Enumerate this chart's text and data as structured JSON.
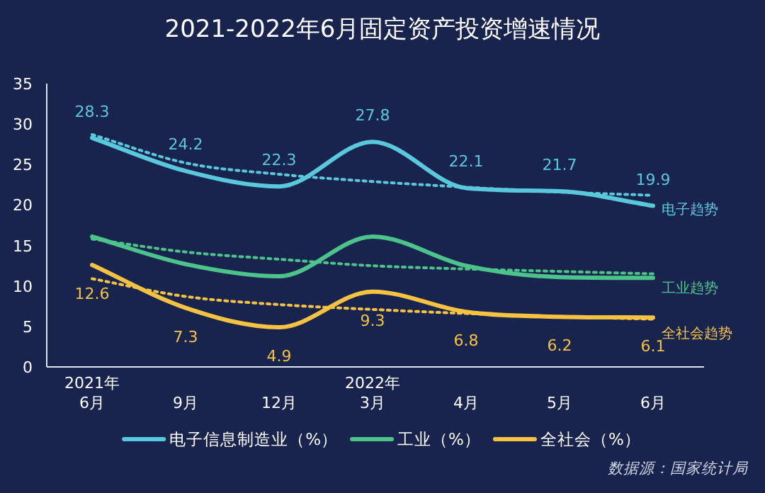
{
  "chart_data": {
    "type": "line",
    "title": "2021-2022年6月固定资产投资增速情况",
    "categories": [
      "2021年\n6月",
      "9月",
      "12月",
      "2022年\n3月",
      "4月",
      "5月",
      "6月"
    ],
    "series": [
      {
        "name": "电子信息制造业（%）",
        "color": "#5ac8dc",
        "values": [
          28.3,
          24.2,
          22.3,
          27.8,
          22.1,
          21.7,
          19.9
        ],
        "value_labels": [
          "28.3",
          "24.2",
          "22.3",
          "27.8",
          "22.1",
          "21.7",
          "19.9"
        ]
      },
      {
        "name": "工业（%）",
        "color": "#4cc38a",
        "values": [
          16.1,
          12.7,
          11.2,
          16.1,
          12.5,
          11.1,
          11.0
        ]
      },
      {
        "name": "全社会（%）",
        "color": "#f5c242",
        "values": [
          12.6,
          7.3,
          4.9,
          9.3,
          6.8,
          6.2,
          6.1
        ],
        "value_labels": [
          "12.6",
          "7.3",
          "4.9",
          "9.3",
          "6.8",
          "6.2",
          "6.1"
        ]
      },
      {
        "name": "电子趋势",
        "color": "#5ac8dc",
        "line_style": "dotted",
        "values": [
          28.7,
          25.2,
          23.8,
          22.9,
          22.2,
          21.6,
          21.2
        ]
      },
      {
        "name": "工业趋势",
        "color": "#4cc38a",
        "line_style": "dotted",
        "values": [
          15.8,
          14.2,
          13.3,
          12.5,
          12.1,
          11.8,
          11.5
        ]
      },
      {
        "name": "全社会趋势",
        "color": "#f5c242",
        "line_style": "dotted",
        "values": [
          10.9,
          8.7,
          7.7,
          7.1,
          6.6,
          6.2,
          5.9
        ]
      }
    ],
    "ylim": [
      0,
      35
    ],
    "yticks": [
      0,
      5,
      10,
      15,
      20,
      25,
      30,
      35
    ],
    "grid": false,
    "legend": "bottom",
    "annotations": [
      "数据源：国家统计局"
    ]
  }
}
